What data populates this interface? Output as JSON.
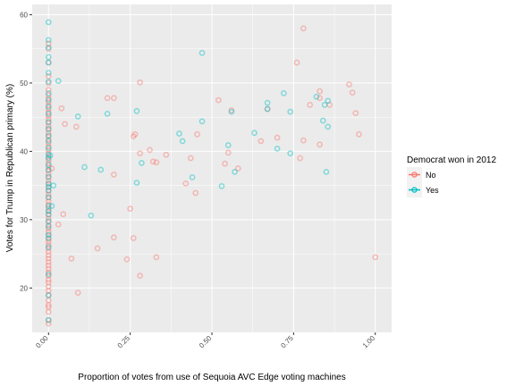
{
  "chart_data": {
    "type": "scatter",
    "title": "",
    "xlabel": "Proportion of votes from use of Sequoia AVC Edge voting machines",
    "ylabel": "Votes for Trump in Republican primary (%)",
    "xlim": [
      -0.05,
      1.05
    ],
    "ylim": [
      13.5,
      61.5
    ],
    "x_ticks": [
      0.0,
      0.25,
      0.5,
      0.75,
      1.0
    ],
    "x_tick_labels": [
      "0.00",
      "0.25",
      "0.50",
      "0.75",
      "1.00"
    ],
    "y_ticks": [
      20,
      30,
      40,
      50,
      60
    ],
    "y_tick_labels": [
      "20",
      "30",
      "40",
      "50",
      "60"
    ],
    "grid": true,
    "legend_position": "right",
    "legend_title": "Democrat won in 2012",
    "colors": {
      "No": "#F8766D",
      "Yes": "#00BFC4",
      "panel": "#EBEBEB",
      "grid": "#FFFFFF"
    },
    "series": [
      {
        "name": "No",
        "color": "#F8766D",
        "points": [
          [
            0.0,
            14.8
          ],
          [
            0.0,
            15.3
          ],
          [
            0.0,
            16.5
          ],
          [
            0.0,
            17.2
          ],
          [
            0.0,
            17.5
          ],
          [
            0.0,
            18.2
          ],
          [
            0.0,
            19.0
          ],
          [
            0.0,
            19.6
          ],
          [
            0.0,
            20.2
          ],
          [
            0.0,
            20.8
          ],
          [
            0.0,
            21.2
          ],
          [
            0.0,
            21.8
          ],
          [
            0.0,
            22.3
          ],
          [
            0.0,
            22.8
          ],
          [
            0.0,
            23.3
          ],
          [
            0.0,
            23.8
          ],
          [
            0.0,
            24.3
          ],
          [
            0.0,
            24.8
          ],
          [
            0.0,
            25.3
          ],
          [
            0.0,
            25.8
          ],
          [
            0.0,
            26.3
          ],
          [
            0.0,
            26.8
          ],
          [
            0.0,
            27.2
          ],
          [
            0.0,
            27.7
          ],
          [
            0.0,
            28.2
          ],
          [
            0.0,
            28.7
          ],
          [
            0.0,
            29.2
          ],
          [
            0.0,
            29.7
          ],
          [
            0.0,
            30.2
          ],
          [
            0.0,
            30.7
          ],
          [
            0.0,
            31.2
          ],
          [
            0.0,
            31.7
          ],
          [
            0.0,
            32.2
          ],
          [
            0.0,
            32.7
          ],
          [
            0.0,
            33.2
          ],
          [
            0.0,
            33.7
          ],
          [
            0.0,
            34.2
          ],
          [
            0.0,
            34.7
          ],
          [
            0.0,
            35.2
          ],
          [
            0.0,
            35.7
          ],
          [
            0.0,
            36.2
          ],
          [
            0.0,
            36.7
          ],
          [
            0.0,
            37.2
          ],
          [
            0.0,
            37.7
          ],
          [
            0.0,
            38.2
          ],
          [
            0.0,
            38.7
          ],
          [
            0.0,
            39.2
          ],
          [
            0.0,
            39.7
          ],
          [
            0.0,
            40.2
          ],
          [
            0.0,
            40.7
          ],
          [
            0.0,
            41.2
          ],
          [
            0.0,
            41.7
          ],
          [
            0.0,
            42.2
          ],
          [
            0.0,
            42.7
          ],
          [
            0.0,
            43.2
          ],
          [
            0.0,
            43.7
          ],
          [
            0.0,
            44.2
          ],
          [
            0.0,
            44.7
          ],
          [
            0.0,
            45.2
          ],
          [
            0.0,
            45.7
          ],
          [
            0.0,
            46.2
          ],
          [
            0.0,
            46.7
          ],
          [
            0.0,
            47.2
          ],
          [
            0.0,
            47.7
          ],
          [
            0.0,
            48.2
          ],
          [
            0.0,
            49.0
          ],
          [
            0.0,
            50.0
          ],
          [
            0.0,
            51.0
          ],
          [
            0.0,
            53.0
          ],
          [
            0.0,
            55.0
          ],
          [
            0.0,
            55.8
          ],
          [
            0.01,
            37.5
          ],
          [
            0.03,
            29.3
          ],
          [
            0.04,
            46.3
          ],
          [
            0.045,
            30.8
          ],
          [
            0.05,
            44.0
          ],
          [
            0.07,
            24.3
          ],
          [
            0.085,
            43.6
          ],
          [
            0.09,
            19.3
          ],
          [
            0.15,
            25.8
          ],
          [
            0.18,
            47.8
          ],
          [
            0.2,
            47.8
          ],
          [
            0.2,
            36.6
          ],
          [
            0.2,
            27.4
          ],
          [
            0.24,
            24.2
          ],
          [
            0.25,
            31.6
          ],
          [
            0.26,
            42.2
          ],
          [
            0.26,
            27.3
          ],
          [
            0.265,
            42.5
          ],
          [
            0.28,
            50.1
          ],
          [
            0.28,
            21.8
          ],
          [
            0.28,
            39.7
          ],
          [
            0.31,
            40.2
          ],
          [
            0.32,
            38.5
          ],
          [
            0.33,
            38.4
          ],
          [
            0.33,
            24.5
          ],
          [
            0.36,
            39.5
          ],
          [
            0.42,
            35.3
          ],
          [
            0.435,
            39.0
          ],
          [
            0.45,
            33.9
          ],
          [
            0.455,
            42.5
          ],
          [
            0.52,
            47.5
          ],
          [
            0.54,
            38.2
          ],
          [
            0.55,
            39.8
          ],
          [
            0.56,
            46.0
          ],
          [
            0.58,
            37.5
          ],
          [
            0.65,
            41.5
          ],
          [
            0.67,
            46.2
          ],
          [
            0.7,
            42.0
          ],
          [
            0.76,
            53.0
          ],
          [
            0.77,
            39.0
          ],
          [
            0.78,
            41.6
          ],
          [
            0.78,
            58.0
          ],
          [
            0.8,
            46.8
          ],
          [
            0.83,
            48.8
          ],
          [
            0.83,
            47.8
          ],
          [
            0.83,
            41.0
          ],
          [
            0.86,
            46.8
          ],
          [
            0.92,
            49.8
          ],
          [
            0.93,
            48.6
          ],
          [
            0.94,
            45.6
          ],
          [
            0.95,
            42.5
          ],
          [
            1.0,
            24.5
          ]
        ]
      },
      {
        "name": "Yes",
        "color": "#00BFC4",
        "points": [
          [
            0.0,
            15.3
          ],
          [
            0.0,
            18.9
          ],
          [
            0.0,
            22.0
          ],
          [
            0.0,
            26.0
          ],
          [
            0.0,
            27.3
          ],
          [
            0.0,
            27.8
          ],
          [
            0.0,
            29.0
          ],
          [
            0.0,
            29.8
          ],
          [
            0.0,
            30.8
          ],
          [
            0.0,
            31.3
          ],
          [
            0.0,
            32.0
          ],
          [
            0.0,
            33.3
          ],
          [
            0.0,
            34.3
          ],
          [
            0.0,
            34.8
          ],
          [
            0.0,
            35.3
          ],
          [
            0.0,
            36.3
          ],
          [
            0.0,
            37.3
          ],
          [
            0.0,
            38.0
          ],
          [
            0.0,
            39.0
          ],
          [
            0.0,
            39.5
          ],
          [
            0.0,
            40.5
          ],
          [
            0.0,
            41.5
          ],
          [
            0.0,
            42.3
          ],
          [
            0.0,
            43.3
          ],
          [
            0.0,
            44.3
          ],
          [
            0.0,
            45.5
          ],
          [
            0.0,
            46.5
          ],
          [
            0.0,
            47.5
          ],
          [
            0.0,
            48.5
          ],
          [
            0.0,
            50.2
          ],
          [
            0.0,
            51.5
          ],
          [
            0.0,
            53.0
          ],
          [
            0.0,
            53.8
          ],
          [
            0.0,
            55.2
          ],
          [
            0.0,
            56.3
          ],
          [
            0.0,
            58.9
          ],
          [
            0.005,
            39.4
          ],
          [
            0.01,
            32.0
          ],
          [
            0.015,
            35.0
          ],
          [
            0.03,
            50.3
          ],
          [
            0.09,
            45.1
          ],
          [
            0.11,
            37.7
          ],
          [
            0.13,
            30.6
          ],
          [
            0.16,
            37.3
          ],
          [
            0.18,
            45.5
          ],
          [
            0.27,
            35.4
          ],
          [
            0.27,
            45.9
          ],
          [
            0.285,
            38.3
          ],
          [
            0.4,
            42.6
          ],
          [
            0.41,
            41.5
          ],
          [
            0.44,
            36.2
          ],
          [
            0.47,
            44.4
          ],
          [
            0.47,
            54.4
          ],
          [
            0.53,
            34.9
          ],
          [
            0.55,
            40.9
          ],
          [
            0.56,
            45.8
          ],
          [
            0.57,
            37.0
          ],
          [
            0.63,
            42.7
          ],
          [
            0.67,
            46.2
          ],
          [
            0.67,
            47.1
          ],
          [
            0.7,
            40.4
          ],
          [
            0.72,
            48.5
          ],
          [
            0.74,
            39.7
          ],
          [
            0.74,
            45.8
          ],
          [
            0.82,
            48.0
          ],
          [
            0.84,
            44.5
          ],
          [
            0.845,
            46.8
          ],
          [
            0.855,
            47.4
          ],
          [
            0.855,
            43.6
          ],
          [
            0.85,
            37.0
          ]
        ]
      }
    ]
  }
}
